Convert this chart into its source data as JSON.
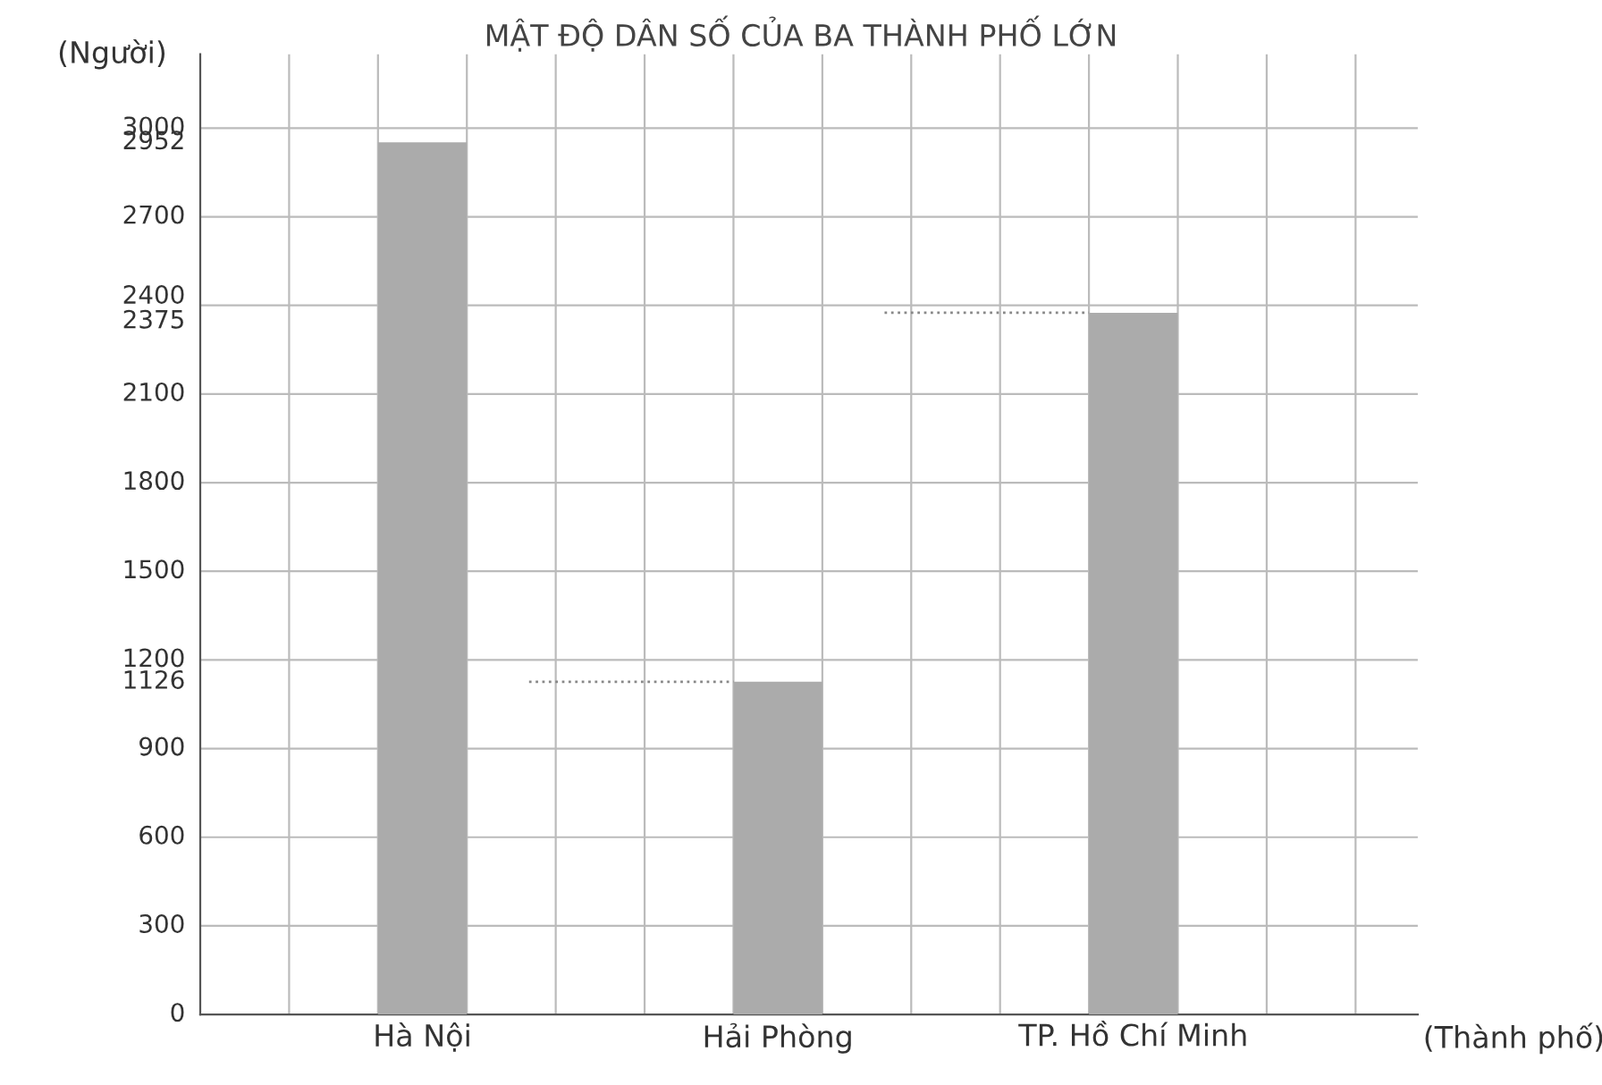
{
  "chart_data": {
    "type": "bar",
    "title": "MẬT ĐỘ DÂN SỐ CỦA BA THÀNH PHỐ LỚN",
    "ylabel": "(Người)",
    "xlabel": "(Thành phố)",
    "categories": [
      "Hà Nội",
      "Hải Phòng",
      "TP. Hồ Chí Minh"
    ],
    "values": [
      2952,
      1126,
      2375
    ],
    "color": "#ababab",
    "ylim": [
      0,
      3250
    ],
    "yticks": [
      0,
      300,
      600,
      900,
      1126,
      1200,
      1500,
      1800,
      2100,
      2375,
      2400,
      2700,
      2952,
      3000
    ],
    "ref_lines": [
      {
        "axis": "y",
        "value": 2375,
        "color": "#888888",
        "line_style": "dotted"
      },
      {
        "axis": "y",
        "value": 1126,
        "color": "#888888",
        "line_style": "dotted"
      }
    ],
    "grid": true
  }
}
